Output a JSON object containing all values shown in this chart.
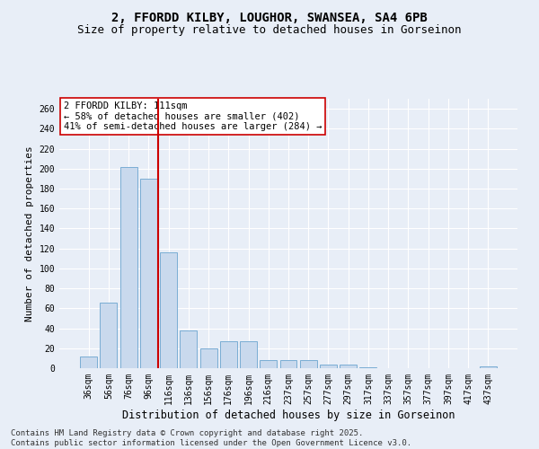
{
  "title1": "2, FFORDD KILBY, LOUGHOR, SWANSEA, SA4 6PB",
  "title2": "Size of property relative to detached houses in Gorseinon",
  "xlabel": "Distribution of detached houses by size in Gorseinon",
  "ylabel": "Number of detached properties",
  "categories": [
    "36sqm",
    "56sqm",
    "76sqm",
    "96sqm",
    "116sqm",
    "136sqm",
    "156sqm",
    "176sqm",
    "196sqm",
    "216sqm",
    "237sqm",
    "257sqm",
    "277sqm",
    "297sqm",
    "317sqm",
    "337sqm",
    "357sqm",
    "377sqm",
    "397sqm",
    "417sqm",
    "437sqm"
  ],
  "values": [
    12,
    66,
    202,
    190,
    116,
    38,
    20,
    27,
    27,
    8,
    8,
    8,
    4,
    4,
    1,
    0,
    0,
    0,
    0,
    0,
    2
  ],
  "bar_color": "#c9d9ed",
  "bar_edge_color": "#7aadd4",
  "bg_color": "#e8eef7",
  "grid_color": "#ffffff",
  "vline_x_index": 4,
  "vline_color": "#cc0000",
  "annotation_text": "2 FFORDD KILBY: 111sqm\n← 58% of detached houses are smaller (402)\n41% of semi-detached houses are larger (284) →",
  "annotation_box_color": "#ffffff",
  "annotation_box_edge": "#cc0000",
  "footer": "Contains HM Land Registry data © Crown copyright and database right 2025.\nContains public sector information licensed under the Open Government Licence v3.0.",
  "ylim": [
    0,
    270
  ],
  "yticks": [
    0,
    20,
    40,
    60,
    80,
    100,
    120,
    140,
    160,
    180,
    200,
    220,
    240,
    260
  ],
  "title1_fontsize": 10,
  "title2_fontsize": 9,
  "xlabel_fontsize": 8.5,
  "ylabel_fontsize": 8,
  "tick_fontsize": 7,
  "annotation_fontsize": 7.5,
  "footer_fontsize": 6.5
}
